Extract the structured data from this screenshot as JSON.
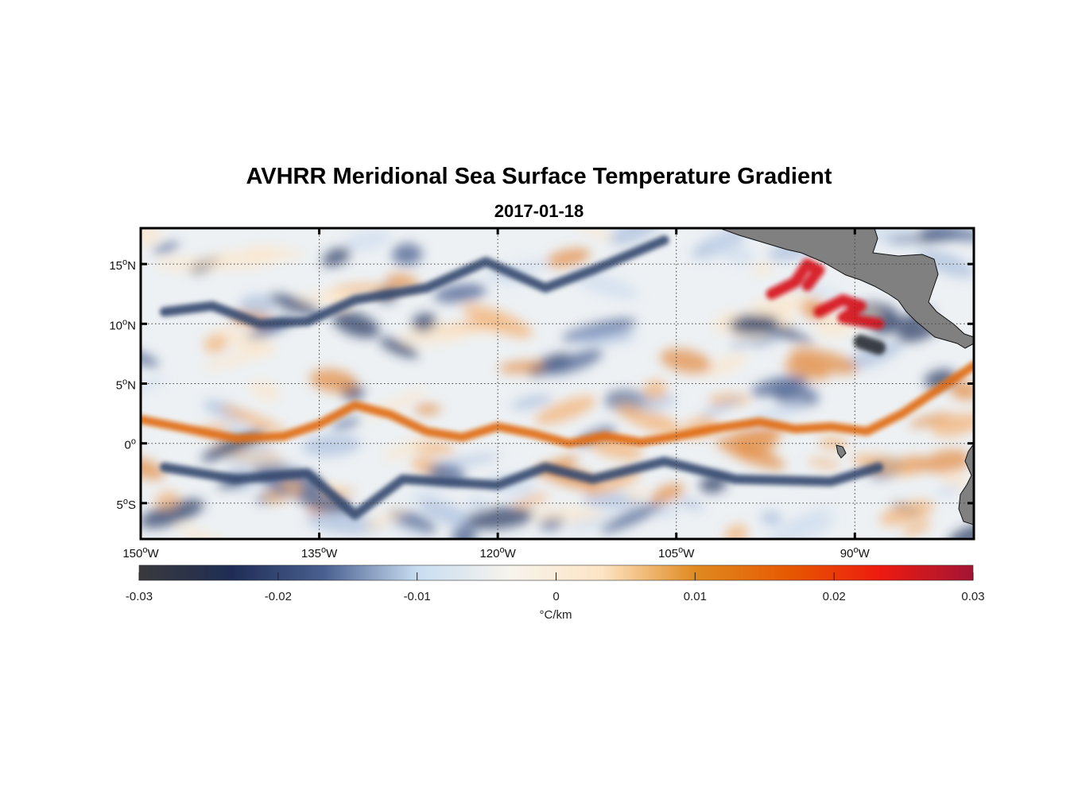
{
  "title": "AVHRR Meridional Sea Surface Temperature Gradient",
  "subtitle": "2017-01-18",
  "map": {
    "lon_range": [
      -150,
      -80
    ],
    "lat_range": [
      -8,
      18
    ],
    "grid": true,
    "lon_ticks": [
      {
        "value": -150,
        "num": "150",
        "hemi": "W"
      },
      {
        "value": -135,
        "num": "135",
        "hemi": "W"
      },
      {
        "value": -120,
        "num": "120",
        "hemi": "W"
      },
      {
        "value": -105,
        "num": "105",
        "hemi": "W"
      },
      {
        "value": -90,
        "num": "90",
        "hemi": "W"
      }
    ],
    "lat_ticks": [
      {
        "value": 15,
        "num": "15",
        "hemi": "N"
      },
      {
        "value": 10,
        "num": "10",
        "hemi": "N"
      },
      {
        "value": 5,
        "num": "5",
        "hemi": "N"
      },
      {
        "value": 0,
        "num": "0",
        "hemi": ""
      },
      {
        "value": -5,
        "num": "5",
        "hemi": "S"
      }
    ],
    "degree_symbol": "o",
    "land_color": "#808080"
  },
  "colorbar": {
    "range": [
      -0.03,
      0.03
    ],
    "ticks": [
      "-0.03",
      "-0.02",
      "-0.01",
      "0",
      "0.01",
      "0.02",
      "0.03"
    ],
    "tick_values": [
      -0.03,
      -0.02,
      -0.01,
      0,
      0.01,
      0.02,
      0.03
    ],
    "label": "°C/km",
    "stops": [
      "#3a3a3c",
      "#1f2d55",
      "#4a6090",
      "#c8dcf0",
      "#f7f4ee",
      "#fde4c4",
      "#e08a20",
      "#e65a00",
      "#ee1a10",
      "#a31535"
    ]
  },
  "features": [
    {
      "kind": "equatorial-front",
      "sign": "positive",
      "points": [
        [
          -150,
          2
        ],
        [
          -146,
          1.2
        ],
        [
          -142,
          0.4
        ],
        [
          -138,
          0.6
        ],
        [
          -135,
          1.6
        ],
        [
          -132,
          3.2
        ],
        [
          -129,
          2.4
        ],
        [
          -126,
          1.0
        ],
        [
          -123,
          0.5
        ],
        [
          -120,
          1.4
        ],
        [
          -117,
          0.8
        ],
        [
          -114,
          0.0
        ],
        [
          -111,
          0.6
        ],
        [
          -108,
          0.1
        ],
        [
          -105,
          0.6
        ],
        [
          -102,
          1.2
        ],
        [
          -98,
          1.8
        ],
        [
          -95,
          1.2
        ],
        [
          -92,
          1.4
        ],
        [
          -89,
          1.0
        ],
        [
          -86,
          2.5
        ],
        [
          -83,
          4.5
        ],
        [
          -80,
          6.5
        ]
      ]
    },
    {
      "kind": "gulf-eddy",
      "sign": "strong-positive",
      "points": [
        [
          -97,
          12.5
        ],
        [
          -95,
          13.5
        ],
        [
          -94,
          15
        ],
        [
          -93,
          14.5
        ],
        [
          -94,
          13.2
        ]
      ]
    },
    {
      "kind": "coastal-front",
      "sign": "strong-positive",
      "points": [
        [
          -93,
          11
        ],
        [
          -91,
          12
        ],
        [
          -89.5,
          11.5
        ],
        [
          -91,
          10.5
        ],
        [
          -88,
          10
        ]
      ]
    },
    {
      "kind": "offshore-eddy",
      "sign": "strong-negative",
      "points": [
        [
          -89.5,
          8.5
        ],
        [
          -88,
          8
        ]
      ]
    },
    {
      "kind": "south-equatorial-band",
      "sign": "negative",
      "points": [
        [
          -148,
          -2
        ],
        [
          -142,
          -3
        ],
        [
          -136,
          -2.5
        ],
        [
          -132,
          -6
        ],
        [
          -128,
          -3
        ],
        [
          -120,
          -3.5
        ],
        [
          -116,
          -2
        ],
        [
          -112,
          -3
        ],
        [
          -106,
          -1.5
        ],
        [
          -100,
          -3
        ],
        [
          -92,
          -3.2
        ],
        [
          -88,
          -2
        ]
      ]
    },
    {
      "kind": "north-band",
      "sign": "negative",
      "points": [
        [
          -148,
          11
        ],
        [
          -144,
          11.5
        ],
        [
          -140,
          10
        ],
        [
          -136,
          10.2
        ],
        [
          -132,
          12
        ],
        [
          -126,
          13
        ],
        [
          -121,
          15.2
        ],
        [
          -116,
          13
        ],
        [
          -112,
          14.5
        ],
        [
          -106,
          17
        ]
      ]
    }
  ]
}
